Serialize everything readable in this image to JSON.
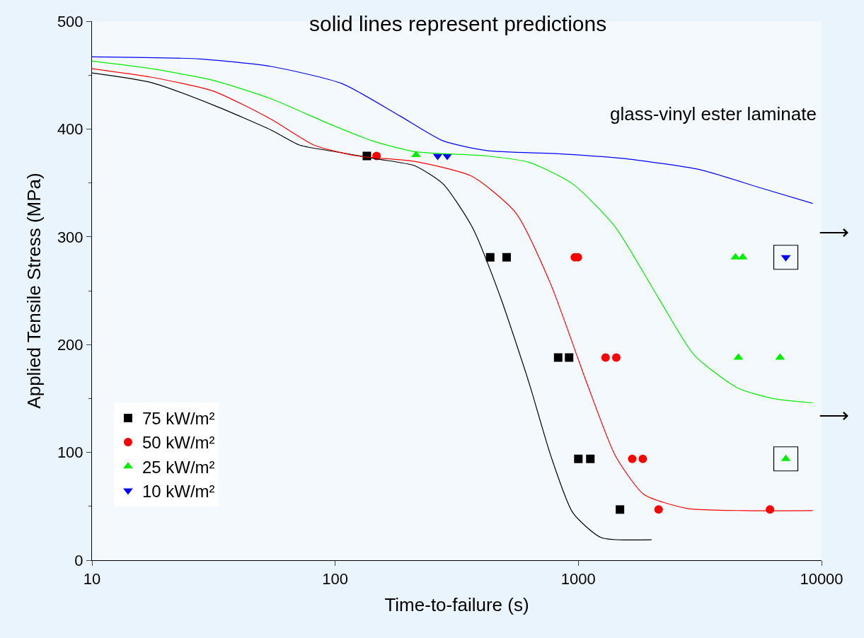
{
  "chart_data": {
    "type": "scatter",
    "title": "solid lines represent predictions",
    "xlabel": "Time-to-failure (s)",
    "ylabel": "Applied Tensile Stress (MPa)",
    "annotations": [
      "glass-vinyl ester laminate",
      "⟶",
      "⟶"
    ],
    "log": "x",
    "xlim": [
      10,
      10000
    ],
    "xticks": [
      10,
      100,
      1000,
      10000
    ],
    "ylim": [
      0,
      500
    ],
    "yticks": [
      0,
      100,
      200,
      300,
      400,
      500
    ],
    "grid": false,
    "legend": "bottom left",
    "series": [
      {
        "name": "75 kW/m²",
        "color": "#000000",
        "marker": "square",
        "x": [
          135,
          434,
          507,
          826,
          916,
          1000,
          1120,
          1483
        ],
        "values": [
          375,
          281,
          281,
          188,
          188,
          94,
          94,
          47
        ]
      },
      {
        "name": "50 kW/m²",
        "color": "#ff0000",
        "marker": "circle",
        "x": [
          148,
          967,
          995,
          1294,
          1432,
          1665,
          1841,
          2138,
          6138
        ],
        "values": [
          375,
          281,
          281,
          188,
          188,
          94,
          94,
          47,
          47
        ]
      },
      {
        "name": "25 kW/m²",
        "color": "#00ee00",
        "marker": "triangle",
        "x": [
          215,
          4426,
          4740,
          4550,
          6750,
          7130
        ],
        "values": [
          376,
          281,
          281,
          188,
          188,
          94
        ]
      },
      {
        "name": "10 kW/m²",
        "color": "#0000ff",
        "marker": "triangle-down",
        "x": [
          264,
          289,
          7130
        ],
        "values": [
          375,
          375,
          281
        ]
      },
      {
        "color": "#000000",
        "marker": "square",
        "x": [
          7130,
          7130
        ],
        "values": [
          281,
          94
        ]
      },
      {
        "type": "line",
        "color": "#000000",
        "marker": "none",
        "x": [
          10,
          17.6,
          31.7,
          54.6,
          71.6,
          100,
          151,
          212,
          278,
          366,
          480,
          628,
          770,
          949,
          1240,
          2000
        ],
        "values": [
          452,
          443,
          422,
          399,
          385,
          379,
          372,
          366,
          349,
          309,
          243,
          164,
          97,
          44,
          21,
          19
        ]
      },
      {
        "type": "line",
        "color": "#ff0000",
        "marker": "none",
        "x": [
          10,
          17.6,
          31.7,
          54.6,
          82,
          123,
          212,
          366,
          554,
          770,
          1085,
          1419,
          1860,
          2800,
          4840,
          9200
        ],
        "values": [
          456,
          448,
          435,
          409,
          385,
          375,
          370,
          356,
          322,
          256,
          164,
          97,
          61,
          48,
          46,
          46
        ]
      },
      {
        "type": "line",
        "color": "#00ee00",
        "marker": "none",
        "x": [
          10,
          17.6,
          31.7,
          54.6,
          94,
          142,
          212,
          420,
          628,
          949,
          1419,
          2138,
          3000,
          4500,
          6300,
          9200
        ],
        "values": [
          463,
          456,
          445,
          428,
          405,
          389,
          379,
          375,
          369,
          349,
          309,
          243,
          190,
          160,
          150,
          146
        ]
      },
      {
        "type": "line",
        "color": "#0000ff",
        "marker": "none",
        "x": [
          10,
          27.7,
          54.6,
          107,
          185,
          278,
          420,
          826,
          1630,
          3200,
          5500,
          9200
        ],
        "values": [
          467,
          465,
          458,
          442,
          412,
          389,
          380,
          377,
          372,
          362,
          346,
          331
        ]
      }
    ]
  }
}
